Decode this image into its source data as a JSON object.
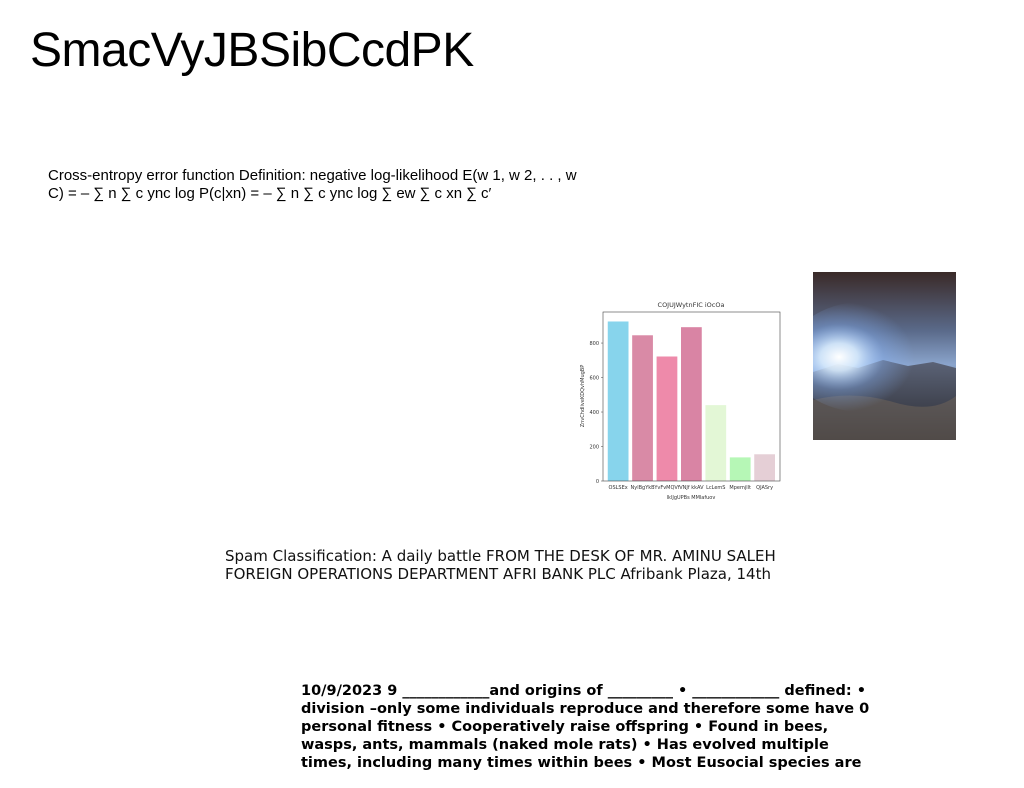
{
  "title": "SmacVyJBSibCcdPK",
  "paragraph1": "Cross-entropy error function Definition: negative log-likelihood E(w 1, w 2, . . , w C) = – ∑ n ∑ c ync log P(c|xn) = – ∑ n ∑ c ync log ∑ ew ∑ c xn ∑ c′",
  "paragraph2": "Spam Classification: A daily battle FROM THE DESK OF MR. AMINU SALEH FOREIGN OPERATIONS DEPARTMENT AFRI BANK PLC Afribank Plaza, 14th",
  "paragraph3": "10/9/2023 9 ____________and origins of _________ • ____________ defined: • division –only some individuals reproduce and therefore some have 0 personal fitness • Cooperatively raise offspring • Found in bees, wasps, ants, mammals (naked mole rats) • Has evolved multiple times, including many times within bees • Most Eusocial species are",
  "chart_data": {
    "type": "bar",
    "title": "COJUJWytnFIC iOcOa",
    "xlabel": "lklJgUPBs MMlafuov",
    "ylabel": "ZnvChdliveKDQvhMugBP",
    "categories": [
      "OSLSEx",
      "NylBgYkB",
      "YvFvMQVf",
      "VNJf kkAV",
      "LcLemS",
      "Mpemjllt",
      "QJASry"
    ],
    "values": [
      925,
      845,
      722,
      892,
      440,
      137,
      155
    ],
    "colors": [
      "#87d4ec",
      "#d98aa6",
      "#ee8aaa",
      "#d984a4",
      "#e3f7d6",
      "#b6f7b6",
      "#e5cfd6"
    ],
    "ylim": [
      0,
      980
    ],
    "yticks": [
      0,
      200,
      400,
      600,
      800
    ],
    "grid": false
  }
}
